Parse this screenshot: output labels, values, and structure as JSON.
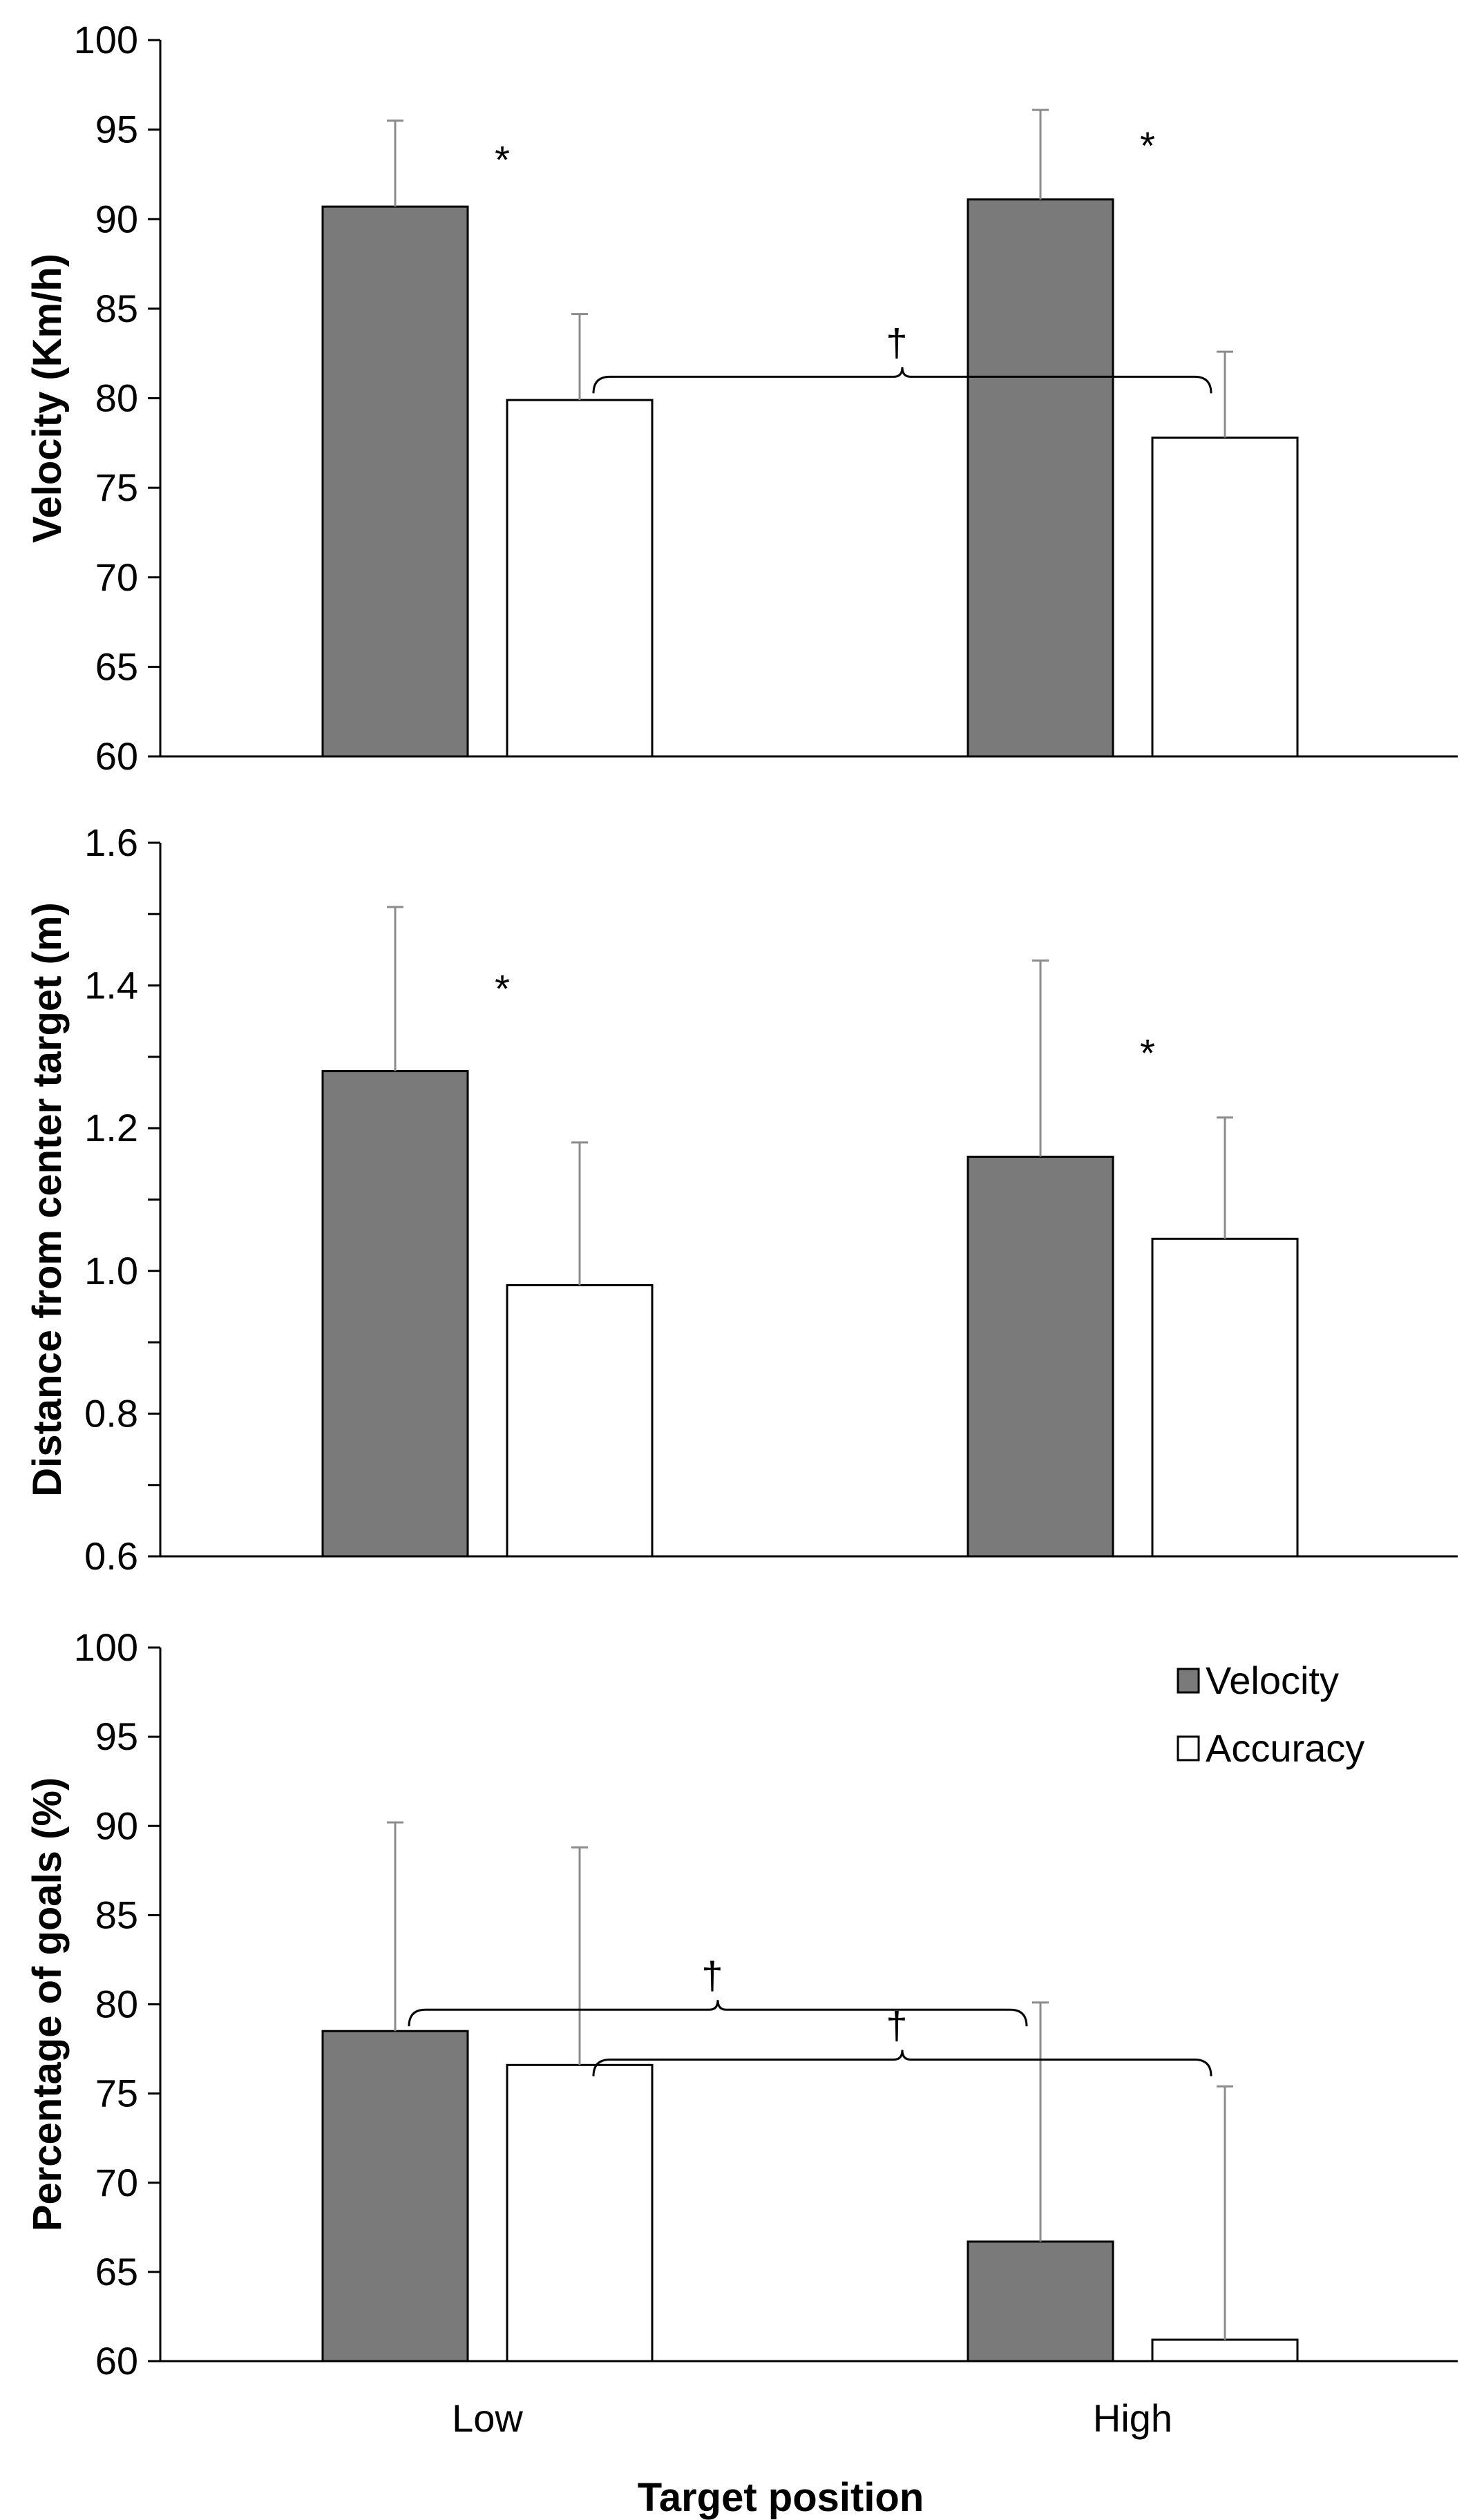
{
  "chart_data": [
    {
      "type": "bar",
      "ylabel": "Velocity (Km/h)",
      "ylim": [
        60,
        100
      ],
      "ytick_step": 5,
      "ytick_labels": [
        "60",
        "65",
        "70",
        "75",
        "80",
        "85",
        "90",
        "95",
        "100"
      ],
      "categories": [
        "Low",
        "High"
      ],
      "series": [
        {
          "name": "Velocity",
          "values": [
            90.7,
            91.1
          ],
          "errors": [
            4.8,
            5.0
          ]
        },
        {
          "name": "Accuracy",
          "values": [
            79.9,
            77.8
          ],
          "errors": [
            4.8,
            4.8
          ]
        }
      ],
      "annotations": [
        {
          "type": "star",
          "text": "*",
          "category": 0,
          "y": 93.5
        },
        {
          "type": "star",
          "text": "*",
          "category": 1,
          "y": 94.3
        },
        {
          "type": "bracket",
          "text": "†",
          "from": [
            0,
            1
          ],
          "to": [
            1,
            1
          ],
          "y": 81.2
        }
      ]
    },
    {
      "type": "bar",
      "ylabel": "Distance from center target (m)",
      "ylim": [
        0.6,
        1.6
      ],
      "ytick_step": 0.1,
      "ytick_labels": [
        "0.6",
        "",
        "0.8",
        "",
        "1.0",
        "",
        "1.2",
        "",
        "1.4",
        "",
        "1.6"
      ],
      "categories": [
        "Low",
        "High"
      ],
      "series": [
        {
          "name": "Velocity",
          "values": [
            1.28,
            1.16
          ],
          "errors": [
            0.23,
            0.275
          ]
        },
        {
          "name": "Accuracy",
          "values": [
            0.98,
            1.045
          ],
          "errors": [
            0.2,
            0.17
          ]
        }
      ],
      "annotations": [
        {
          "type": "star",
          "text": "*",
          "category": 0,
          "y": 1.4
        },
        {
          "type": "star",
          "text": "*",
          "category": 1,
          "y": 1.31
        }
      ]
    },
    {
      "type": "bar",
      "ylabel": "Percentage of goals (%)",
      "xlabel": "Target position",
      "ylim": [
        60,
        100
      ],
      "ytick_step": 5,
      "ytick_labels": [
        "60",
        "65",
        "70",
        "75",
        "80",
        "85",
        "90",
        "95",
        "100"
      ],
      "categories": [
        "Low",
        "High"
      ],
      "series": [
        {
          "name": "Velocity",
          "values": [
            78.5,
            66.7
          ],
          "errors": [
            11.7,
            13.4
          ]
        },
        {
          "name": "Accuracy",
          "values": [
            76.6,
            61.2
          ],
          "errors": [
            12.2,
            14.2
          ]
        }
      ],
      "legend": {
        "position": "top-right",
        "entries": [
          "Velocity",
          "Accuracy"
        ]
      },
      "annotations": [
        {
          "type": "bracket",
          "text": "†",
          "from": [
            0,
            0
          ],
          "to": [
            1,
            0
          ],
          "y": 79.7
        },
        {
          "type": "bracket",
          "text": "†",
          "from": [
            0,
            1
          ],
          "to": [
            1,
            1
          ],
          "y": 76.9
        }
      ]
    }
  ],
  "colors": {
    "velocity_fill": "#7a7a7a",
    "accuracy_fill": "#ffffff",
    "outline": "#000000",
    "error_bar": "#8c8c8c"
  }
}
